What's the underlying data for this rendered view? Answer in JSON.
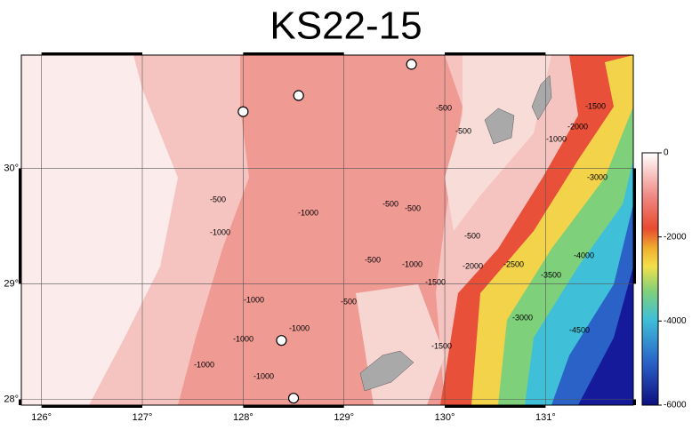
{
  "map": {
    "title": "KS22-15",
    "xlim": [
      125.8,
      131.87
    ],
    "ylim": [
      27.95,
      30.98
    ],
    "xticks": [
      {
        "value": 126,
        "label": "126°"
      },
      {
        "value": 127,
        "label": "127°"
      },
      {
        "value": 128,
        "label": "128°"
      },
      {
        "value": 129,
        "label": "129°"
      },
      {
        "value": 130,
        "label": "130°"
      },
      {
        "value": 131,
        "label": "131°"
      }
    ],
    "yticks": [
      {
        "value": 28,
        "label": "28°"
      },
      {
        "value": 29,
        "label": "29°"
      },
      {
        "value": 30,
        "label": "30°"
      }
    ],
    "stations": {
      "lon": [
        129.67,
        128.55,
        128.0,
        128.38,
        128.5
      ],
      "lat": [
        30.9,
        30.63,
        30.49,
        28.51,
        28.01
      ]
    },
    "contour_labels": [
      -500,
      -500,
      -500,
      -1000,
      -1000,
      -500,
      -500,
      -500,
      -1000,
      -1000,
      -1000,
      -1000,
      -1000,
      -500,
      -1000,
      -1500,
      -500,
      -1500,
      -2000,
      -2500,
      -3500,
      -3000,
      -4000,
      -4500,
      -3000,
      -1000,
      -1500,
      -2000
    ],
    "colorbar": {
      "range": [
        -6000,
        0
      ],
      "ticks": [
        0,
        -2000,
        -4000,
        -6000
      ]
    }
  }
}
